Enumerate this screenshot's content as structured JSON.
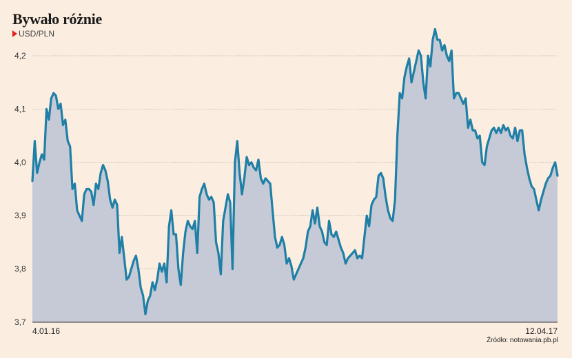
{
  "title": "Bywało różnie",
  "subtitle": "USD/PLN",
  "source": "Źródło: notowania.pb.pl",
  "chart_data": {
    "type": "area",
    "ylabel": "USD/PLN",
    "ylim": [
      3.7,
      4.25
    ],
    "yticks": [
      {
        "value": 3.7,
        "label": "3,7"
      },
      {
        "value": 3.8,
        "label": "3,8"
      },
      {
        "value": 3.9,
        "label": "3,9"
      },
      {
        "value": 4.0,
        "label": "4,0"
      },
      {
        "value": 4.1,
        "label": "4,1"
      },
      {
        "value": 4.2,
        "label": "4,2"
      }
    ],
    "xticks": [
      {
        "value": "2016-01-04",
        "label": "4.01.16"
      },
      {
        "value": "2017-04-12",
        "label": "12.04.17"
      }
    ],
    "grid": true,
    "colors": {
      "line": "#1f7fa6",
      "fill": "#c5cad6",
      "grid": "#b5b0a8",
      "marker": "#e2231a"
    },
    "series": [
      {
        "values": [
          3.965,
          4.04,
          3.98,
          4.0,
          4.015,
          4.005,
          4.1,
          4.08,
          4.12,
          4.13,
          4.125,
          4.1,
          4.11,
          4.07,
          4.08,
          4.04,
          4.03,
          3.95,
          3.96,
          3.91,
          3.9,
          3.89,
          3.94,
          3.95,
          3.95,
          3.945,
          3.92,
          3.96,
          3.95,
          3.98,
          3.995,
          3.985,
          3.965,
          3.93,
          3.915,
          3.93,
          3.92,
          3.83,
          3.86,
          3.82,
          3.78,
          3.785,
          3.8,
          3.815,
          3.825,
          3.8,
          3.765,
          3.75,
          3.715,
          3.74,
          3.75,
          3.775,
          3.76,
          3.78,
          3.81,
          3.795,
          3.81,
          3.775,
          3.88,
          3.91,
          3.865,
          3.865,
          3.8,
          3.77,
          3.83,
          3.87,
          3.89,
          3.88,
          3.875,
          3.89,
          3.83,
          3.935,
          3.95,
          3.96,
          3.94,
          3.93,
          3.935,
          3.925,
          3.85,
          3.83,
          3.79,
          3.89,
          3.915,
          3.94,
          3.925,
          3.8,
          4.0,
          4.04,
          3.98,
          3.94,
          3.97,
          4.01,
          3.995,
          4.0,
          3.99,
          3.985,
          4.005,
          3.97,
          3.96,
          3.97,
          3.965,
          3.96,
          3.91,
          3.86,
          3.84,
          3.845,
          3.86,
          3.845,
          3.81,
          3.82,
          3.805,
          3.78,
          3.79,
          3.8,
          3.81,
          3.82,
          3.84,
          3.87,
          3.88,
          3.91,
          3.885,
          3.915,
          3.88,
          3.87,
          3.85,
          3.845,
          3.89,
          3.865,
          3.86,
          3.87,
          3.855,
          3.84,
          3.83,
          3.81,
          3.82,
          3.825,
          3.83,
          3.835,
          3.82,
          3.825,
          3.82,
          3.86,
          3.9,
          3.88,
          3.92,
          3.93,
          3.935,
          3.975,
          3.98,
          3.97,
          3.935,
          3.91,
          3.895,
          3.89,
          3.93,
          4.05,
          4.13,
          4.12,
          4.16,
          4.18,
          4.195,
          4.15,
          4.17,
          4.19,
          4.21,
          4.2,
          4.15,
          4.12,
          4.2,
          4.18,
          4.23,
          4.25,
          4.23,
          4.23,
          4.21,
          4.22,
          4.2,
          4.19,
          4.21,
          4.12,
          4.13,
          4.13,
          4.12,
          4.11,
          4.12,
          4.065,
          4.08,
          4.06,
          4.06,
          4.045,
          4.05,
          4.0,
          3.995,
          4.03,
          4.045,
          4.06,
          4.065,
          4.055,
          4.065,
          4.055,
          4.07,
          4.06,
          4.065,
          4.05,
          4.045,
          4.065,
          4.04,
          4.06,
          4.06,
          4.015,
          3.99,
          3.97,
          3.955,
          3.95,
          3.93,
          3.91,
          3.93,
          3.945,
          3.96,
          3.97,
          3.975,
          3.99,
          4.0,
          3.975
        ]
      }
    ]
  }
}
